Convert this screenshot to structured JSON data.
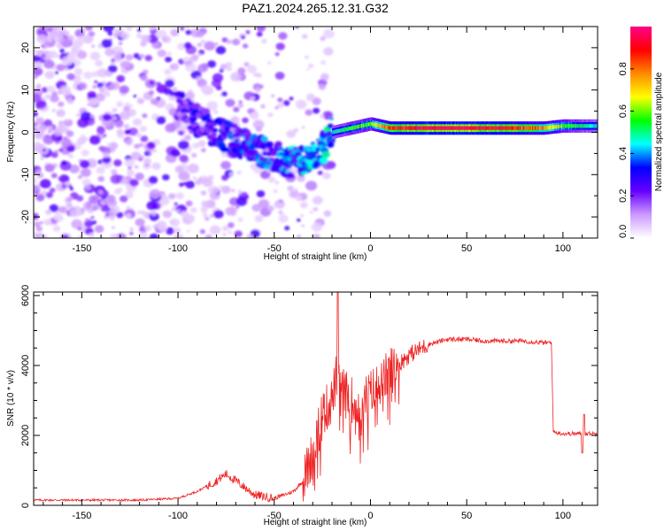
{
  "title": "PAZ1.2024.265.12.31.G32",
  "chart_data": [
    {
      "type": "heatmap",
      "xlabel": "Height of straight line (km)",
      "ylabel": "Frequency (Hz)",
      "xlim": [
        -175,
        118
      ],
      "ylim": [
        -25,
        25
      ],
      "xticks": [
        -150,
        -100,
        -50,
        0,
        50,
        100
      ],
      "yticks": [
        -20,
        -10,
        0,
        10,
        20
      ],
      "colorbar": {
        "label": "Normalized spectral amplitude",
        "range": [
          0,
          1
        ],
        "ticks": [
          0.0,
          0.2,
          0.4,
          0.6,
          0.8
        ],
        "tick_labels": [
          "0.0",
          "0.2",
          "0.4",
          "0.6",
          "0.8"
        ],
        "colormap": [
          "#ffffff",
          "#cc99ff",
          "#6600ff",
          "#0000ff",
          "#00ffff",
          "#00ff00",
          "#ffff00",
          "#ff8800",
          "#ff0000",
          "#ff0088"
        ]
      },
      "ridge": {
        "x": [
          -100,
          -90,
          -80,
          -70,
          -60,
          -50,
          -40,
          -30,
          -25,
          -20,
          -10,
          0,
          10,
          30,
          50,
          70,
          90,
          100,
          110,
          118
        ],
        "y": [
          6,
          3,
          0,
          -2,
          -4,
          -6,
          -7,
          -6,
          -4,
          0,
          1,
          2,
          1,
          1,
          1,
          1,
          1,
          1.5,
          1.5,
          1.5
        ],
        "amplitude": [
          0.2,
          0.25,
          0.25,
          0.3,
          0.3,
          0.3,
          0.35,
          0.4,
          0.35,
          0.45,
          0.55,
          0.6,
          0.85,
          0.95,
          0.95,
          0.9,
          0.75,
          0.6,
          0.5,
          0.45
        ]
      },
      "noise_region": [
        -175,
        -20
      ]
    },
    {
      "type": "line",
      "xlabel": "Height of straight line (km)",
      "ylabel": "SNR (10 * v/v)",
      "xlim": [
        -175,
        118
      ],
      "ylim": [
        0,
        6100
      ],
      "xticks": [
        -150,
        -100,
        -50,
        0,
        50,
        100
      ],
      "yticks": [
        0,
        2000,
        4000,
        6000
      ],
      "line_color": "#ee2222",
      "series": [
        {
          "x": [
            -175,
            -150,
            -120,
            -100,
            -90,
            -80,
            -75,
            -70,
            -60,
            -50,
            -40,
            -35,
            -30,
            -25,
            -20,
            -18,
            -15,
            -10,
            -5,
            0,
            5,
            10,
            20,
            30,
            40,
            50,
            60,
            70,
            80,
            90,
            94,
            95,
            100,
            110,
            118
          ],
          "y": [
            150,
            150,
            150,
            200,
            400,
            700,
            900,
            700,
            300,
            200,
            400,
            700,
            1500,
            2600,
            3000,
            3600,
            3300,
            3000,
            2900,
            3200,
            3500,
            3800,
            4300,
            4600,
            4750,
            4750,
            4700,
            4700,
            4700,
            4650,
            4650,
            2100,
            2050,
            2050,
            2050
          ]
        }
      ]
    }
  ]
}
